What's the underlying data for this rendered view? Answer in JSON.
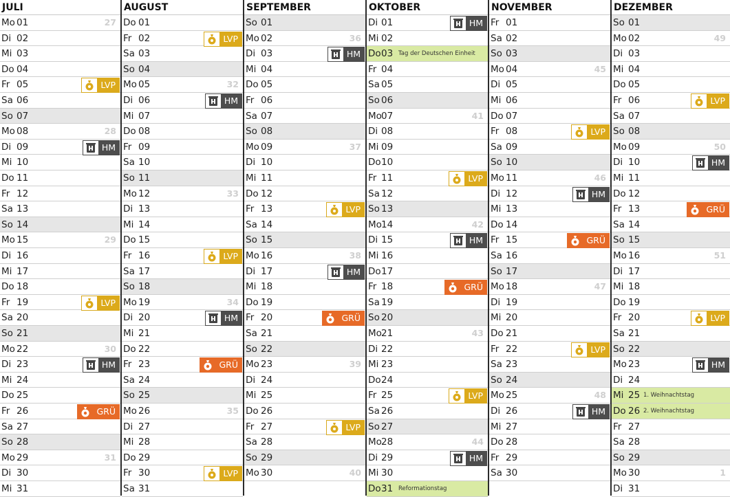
{
  "colors": {
    "lvp": "#dcaa1b",
    "hm": "#4d4d4d",
    "gru": "#e76a27",
    "holiday": "#d9eaa3",
    "sunday": "#e6e6e6"
  },
  "tag_labels": {
    "lvp": "LVP",
    "hm": "HM",
    "gru": "GRÜ"
  },
  "tag_icons": {
    "lvp": "yellow-bag-icon",
    "hm": "trash-bin-icon",
    "gru": "organic-bag-icon"
  },
  "months": [
    {
      "name": "JULI",
      "days": [
        {
          "wd": "Mo",
          "d": "01",
          "wk": "27"
        },
        {
          "wd": "Di",
          "d": "02"
        },
        {
          "wd": "Mi",
          "d": "03"
        },
        {
          "wd": "Do",
          "d": "04"
        },
        {
          "wd": "Fr",
          "d": "05",
          "tag": "lvp"
        },
        {
          "wd": "Sa",
          "d": "06"
        },
        {
          "wd": "So",
          "d": "07"
        },
        {
          "wd": "Mo",
          "d": "08",
          "wk": "28"
        },
        {
          "wd": "Di",
          "d": "09",
          "tag": "hm"
        },
        {
          "wd": "Mi",
          "d": "10"
        },
        {
          "wd": "Do",
          "d": "11"
        },
        {
          "wd": "Fr",
          "d": "12"
        },
        {
          "wd": "Sa",
          "d": "13"
        },
        {
          "wd": "So",
          "d": "14"
        },
        {
          "wd": "Mo",
          "d": "15",
          "wk": "29"
        },
        {
          "wd": "Di",
          "d": "16"
        },
        {
          "wd": "Mi",
          "d": "17"
        },
        {
          "wd": "Do",
          "d": "18"
        },
        {
          "wd": "Fr",
          "d": "19",
          "tag": "lvp"
        },
        {
          "wd": "Sa",
          "d": "20"
        },
        {
          "wd": "So",
          "d": "21"
        },
        {
          "wd": "Mo",
          "d": "22",
          "wk": "30"
        },
        {
          "wd": "Di",
          "d": "23",
          "tag": "hm"
        },
        {
          "wd": "Mi",
          "d": "24"
        },
        {
          "wd": "Do",
          "d": "25"
        },
        {
          "wd": "Fr",
          "d": "26",
          "tag": "gru"
        },
        {
          "wd": "Sa",
          "d": "27"
        },
        {
          "wd": "So",
          "d": "28"
        },
        {
          "wd": "Mo",
          "d": "29",
          "wk": "31"
        },
        {
          "wd": "Di",
          "d": "30"
        },
        {
          "wd": "Mi",
          "d": "31"
        }
      ]
    },
    {
      "name": "AUGUST",
      "days": [
        {
          "wd": "Do",
          "d": "01"
        },
        {
          "wd": "Fr",
          "d": "02",
          "tag": "lvp"
        },
        {
          "wd": "Sa",
          "d": "03"
        },
        {
          "wd": "So",
          "d": "04"
        },
        {
          "wd": "Mo",
          "d": "05",
          "wk": "32"
        },
        {
          "wd": "Di",
          "d": "06",
          "tag": "hm"
        },
        {
          "wd": "Mi",
          "d": "07"
        },
        {
          "wd": "Do",
          "d": "08"
        },
        {
          "wd": "Fr",
          "d": "09"
        },
        {
          "wd": "Sa",
          "d": "10"
        },
        {
          "wd": "So",
          "d": "11"
        },
        {
          "wd": "Mo",
          "d": "12",
          "wk": "33"
        },
        {
          "wd": "Di",
          "d": "13"
        },
        {
          "wd": "Mi",
          "d": "14"
        },
        {
          "wd": "Do",
          "d": "15"
        },
        {
          "wd": "Fr",
          "d": "16",
          "tag": "lvp"
        },
        {
          "wd": "Sa",
          "d": "17"
        },
        {
          "wd": "So",
          "d": "18"
        },
        {
          "wd": "Mo",
          "d": "19",
          "wk": "34"
        },
        {
          "wd": "Di",
          "d": "20",
          "tag": "hm"
        },
        {
          "wd": "Mi",
          "d": "21"
        },
        {
          "wd": "Do",
          "d": "22"
        },
        {
          "wd": "Fr",
          "d": "23",
          "tag": "gru"
        },
        {
          "wd": "Sa",
          "d": "24"
        },
        {
          "wd": "So",
          "d": "25"
        },
        {
          "wd": "Mo",
          "d": "26",
          "wk": "35"
        },
        {
          "wd": "Di",
          "d": "27"
        },
        {
          "wd": "Mi",
          "d": "28"
        },
        {
          "wd": "Do",
          "d": "29"
        },
        {
          "wd": "Fr",
          "d": "30",
          "tag": "lvp"
        },
        {
          "wd": "Sa",
          "d": "31"
        }
      ]
    },
    {
      "name": "SEPTEMBER",
      "days": [
        {
          "wd": "So",
          "d": "01"
        },
        {
          "wd": "Mo",
          "d": "02",
          "wk": "36"
        },
        {
          "wd": "Di",
          "d": "03",
          "tag": "hm"
        },
        {
          "wd": "Mi",
          "d": "04"
        },
        {
          "wd": "Do",
          "d": "05"
        },
        {
          "wd": "Fr",
          "d": "06"
        },
        {
          "wd": "Sa",
          "d": "07"
        },
        {
          "wd": "So",
          "d": "08"
        },
        {
          "wd": "Mo",
          "d": "09",
          "wk": "37"
        },
        {
          "wd": "Di",
          "d": "10"
        },
        {
          "wd": "Mi",
          "d": "11"
        },
        {
          "wd": "Do",
          "d": "12"
        },
        {
          "wd": "Fr",
          "d": "13",
          "tag": "lvp"
        },
        {
          "wd": "Sa",
          "d": "14"
        },
        {
          "wd": "So",
          "d": "15"
        },
        {
          "wd": "Mo",
          "d": "16",
          "wk": "38"
        },
        {
          "wd": "Di",
          "d": "17",
          "tag": "hm"
        },
        {
          "wd": "Mi",
          "d": "18"
        },
        {
          "wd": "Do",
          "d": "19"
        },
        {
          "wd": "Fr",
          "d": "20",
          "tag": "gru"
        },
        {
          "wd": "Sa",
          "d": "21"
        },
        {
          "wd": "So",
          "d": "22"
        },
        {
          "wd": "Mo",
          "d": "23",
          "wk": "39"
        },
        {
          "wd": "Di",
          "d": "24"
        },
        {
          "wd": "Mi",
          "d": "25"
        },
        {
          "wd": "Do",
          "d": "26"
        },
        {
          "wd": "Fr",
          "d": "27",
          "tag": "lvp"
        },
        {
          "wd": "Sa",
          "d": "28"
        },
        {
          "wd": "So",
          "d": "29"
        },
        {
          "wd": "Mo",
          "d": "30",
          "wk": "40"
        }
      ]
    },
    {
      "name": "OKTOBER",
      "narrow": true,
      "days": [
        {
          "wd": "Di",
          "d": "01",
          "tag": "hm"
        },
        {
          "wd": "Mi",
          "d": "02"
        },
        {
          "wd": "Do",
          "d": "03",
          "hol": "Tag der Deutschen Einheit"
        },
        {
          "wd": "Fr",
          "d": "04"
        },
        {
          "wd": "Sa",
          "d": "05"
        },
        {
          "wd": "So",
          "d": "06"
        },
        {
          "wd": "Mo",
          "d": "07",
          "wk": "41"
        },
        {
          "wd": "Di",
          "d": "08"
        },
        {
          "wd": "Mi",
          "d": "09"
        },
        {
          "wd": "Do",
          "d": "10"
        },
        {
          "wd": "Fr",
          "d": "11",
          "tag": "lvp"
        },
        {
          "wd": "Sa",
          "d": "12"
        },
        {
          "wd": "So",
          "d": "13"
        },
        {
          "wd": "Mo",
          "d": "14",
          "wk": "42"
        },
        {
          "wd": "Di",
          "d": "15",
          "tag": "hm"
        },
        {
          "wd": "Mi",
          "d": "16"
        },
        {
          "wd": "Do",
          "d": "17"
        },
        {
          "wd": "Fr",
          "d": "18",
          "tag": "gru"
        },
        {
          "wd": "Sa",
          "d": "19"
        },
        {
          "wd": "So",
          "d": "20"
        },
        {
          "wd": "Mo",
          "d": "21",
          "wk": "43"
        },
        {
          "wd": "Di",
          "d": "22"
        },
        {
          "wd": "Mi",
          "d": "23"
        },
        {
          "wd": "Do",
          "d": "24"
        },
        {
          "wd": "Fr",
          "d": "25",
          "tag": "lvp"
        },
        {
          "wd": "Sa",
          "d": "26"
        },
        {
          "wd": "So",
          "d": "27"
        },
        {
          "wd": "Mo",
          "d": "28",
          "wk": "44"
        },
        {
          "wd": "Di",
          "d": "29",
          "tag": "hm"
        },
        {
          "wd": "Mi",
          "d": "30"
        },
        {
          "wd": "Do",
          "d": "31",
          "hol": "Reformationstag"
        }
      ]
    },
    {
      "name": "NOVEMBER",
      "days": [
        {
          "wd": "Fr",
          "d": "01"
        },
        {
          "wd": "Sa",
          "d": "02"
        },
        {
          "wd": "So",
          "d": "03"
        },
        {
          "wd": "Mo",
          "d": "04",
          "wk": "45"
        },
        {
          "wd": "Di",
          "d": "05"
        },
        {
          "wd": "Mi",
          "d": "06"
        },
        {
          "wd": "Do",
          "d": "07"
        },
        {
          "wd": "Fr",
          "d": "08",
          "tag": "lvp"
        },
        {
          "wd": "Sa",
          "d": "09"
        },
        {
          "wd": "So",
          "d": "10"
        },
        {
          "wd": "Mo",
          "d": "11",
          "wk": "46"
        },
        {
          "wd": "Di",
          "d": "12",
          "tag": "hm"
        },
        {
          "wd": "Mi",
          "d": "13"
        },
        {
          "wd": "Do",
          "d": "14"
        },
        {
          "wd": "Fr",
          "d": "15",
          "tag": "gru"
        },
        {
          "wd": "Sa",
          "d": "16"
        },
        {
          "wd": "So",
          "d": "17"
        },
        {
          "wd": "Mo",
          "d": "18",
          "wk": "47"
        },
        {
          "wd": "Di",
          "d": "19"
        },
        {
          "wd": "Mi",
          "d": "20"
        },
        {
          "wd": "Do",
          "d": "21"
        },
        {
          "wd": "Fr",
          "d": "22",
          "tag": "lvp"
        },
        {
          "wd": "Sa",
          "d": "23"
        },
        {
          "wd": "So",
          "d": "24"
        },
        {
          "wd": "Mo",
          "d": "25",
          "wk": "48"
        },
        {
          "wd": "Di",
          "d": "26",
          "tag": "hm"
        },
        {
          "wd": "Mi",
          "d": "27"
        },
        {
          "wd": "Do",
          "d": "28"
        },
        {
          "wd": "Fr",
          "d": "29"
        },
        {
          "wd": "Sa",
          "d": "30"
        }
      ]
    },
    {
      "name": "DEZEMBER",
      "days": [
        {
          "wd": "So",
          "d": "01"
        },
        {
          "wd": "Mo",
          "d": "02",
          "wk": "49"
        },
        {
          "wd": "Di",
          "d": "03"
        },
        {
          "wd": "Mi",
          "d": "04"
        },
        {
          "wd": "Do",
          "d": "05"
        },
        {
          "wd": "Fr",
          "d": "06",
          "tag": "lvp"
        },
        {
          "wd": "Sa",
          "d": "07"
        },
        {
          "wd": "So",
          "d": "08"
        },
        {
          "wd": "Mo",
          "d": "09",
          "wk": "50"
        },
        {
          "wd": "Di",
          "d": "10",
          "tag": "hm"
        },
        {
          "wd": "Mi",
          "d": "11"
        },
        {
          "wd": "Do",
          "d": "12"
        },
        {
          "wd": "Fr",
          "d": "13",
          "tag": "gru"
        },
        {
          "wd": "Sa",
          "d": "14"
        },
        {
          "wd": "So",
          "d": "15"
        },
        {
          "wd": "Mo",
          "d": "16",
          "wk": "51"
        },
        {
          "wd": "Di",
          "d": "17"
        },
        {
          "wd": "Mi",
          "d": "18"
        },
        {
          "wd": "Do",
          "d": "19"
        },
        {
          "wd": "Fr",
          "d": "20",
          "tag": "lvp"
        },
        {
          "wd": "Sa",
          "d": "21"
        },
        {
          "wd": "So",
          "d": "22"
        },
        {
          "wd": "Mo",
          "d": "23",
          "tag": "hm"
        },
        {
          "wd": "Di",
          "d": "24"
        },
        {
          "wd": "Mi",
          "d": "25",
          "hol": "1. Weihnachtstag"
        },
        {
          "wd": "Do",
          "d": "26",
          "hol": "2. Weihnachtstag"
        },
        {
          "wd": "Fr",
          "d": "27"
        },
        {
          "wd": "Sa",
          "d": "28"
        },
        {
          "wd": "So",
          "d": "29"
        },
        {
          "wd": "Mo",
          "d": "30",
          "wk": "1"
        },
        {
          "wd": "Di",
          "d": "31"
        }
      ]
    }
  ]
}
